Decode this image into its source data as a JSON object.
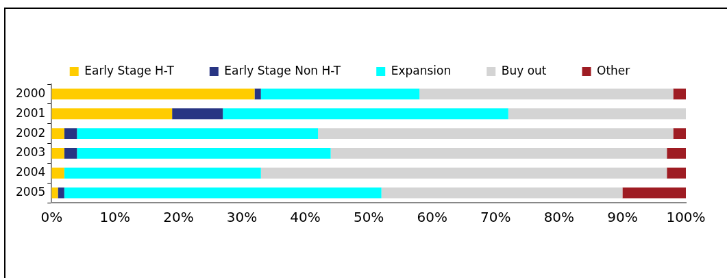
{
  "chart_data": {
    "type": "bar",
    "orientation": "horizontal",
    "stacked": true,
    "categories": [
      "2000",
      "2001",
      "2002",
      "2003",
      "2004",
      "2005"
    ],
    "series": [
      {
        "name": "Early Stage H-T",
        "color": "#ffcc00",
        "values": [
          32,
          19,
          2,
          2,
          2,
          1
        ]
      },
      {
        "name": "Early Stage Non H-T",
        "color": "#283583",
        "values": [
          1,
          8,
          2,
          2,
          0,
          1
        ]
      },
      {
        "name": "Expansion",
        "color": "#00ffff",
        "values": [
          25,
          45,
          38,
          40,
          31,
          50
        ]
      },
      {
        "name": "Buy out",
        "color": "#d4d4d4",
        "values": [
          40,
          28,
          56,
          53,
          64,
          38
        ]
      },
      {
        "name": "Other",
        "color": "#9e1c23",
        "values": [
          2,
          0,
          2,
          3,
          3,
          10
        ]
      }
    ],
    "xlim": [
      0,
      100
    ],
    "xticks": [
      {
        "value": 0,
        "label": "0%"
      },
      {
        "value": 10,
        "label": "10%"
      },
      {
        "value": 20,
        "label": "20%"
      },
      {
        "value": 30,
        "label": "30%"
      },
      {
        "value": 40,
        "label": "40%"
      },
      {
        "value": 50,
        "label": "50%"
      },
      {
        "value": 60,
        "label": "60%"
      },
      {
        "value": 70,
        "label": "70%"
      },
      {
        "value": 80,
        "label": "80%"
      },
      {
        "value": 90,
        "label": "90%"
      },
      {
        "value": 100,
        "label": "100%"
      }
    ],
    "grid": false,
    "legend": "top"
  }
}
